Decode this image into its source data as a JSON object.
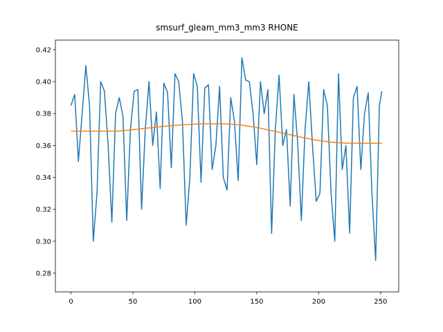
{
  "chart_data": {
    "type": "line",
    "title": "smsurf_gleam_mm3_mm3 RHONE",
    "x": [
      0,
      3,
      6,
      9,
      12,
      15,
      18,
      21,
      24,
      27,
      30,
      33,
      36,
      39,
      42,
      45,
      48,
      51,
      54,
      57,
      60,
      63,
      66,
      69,
      72,
      75,
      78,
      81,
      84,
      87,
      90,
      93,
      96,
      99,
      102,
      105,
      108,
      111,
      114,
      117,
      120,
      123,
      126,
      129,
      132,
      135,
      138,
      141,
      144,
      147,
      150,
      153,
      156,
      159,
      162,
      165,
      168,
      171,
      174,
      177,
      180,
      183,
      186,
      189,
      192,
      195,
      198,
      201,
      204,
      207,
      210,
      213,
      216,
      219,
      222,
      225,
      228,
      231,
      234,
      237,
      240,
      243,
      246,
      249,
      251
    ],
    "series": [
      {
        "color": "#1f77b4",
        "values": [
          0.385,
          0.392,
          0.35,
          0.38,
          0.41,
          0.385,
          0.3,
          0.33,
          0.4,
          0.394,
          0.36,
          0.312,
          0.38,
          0.39,
          0.378,
          0.313,
          0.37,
          0.394,
          0.395,
          0.32,
          0.37,
          0.4,
          0.36,
          0.381,
          0.333,
          0.399,
          0.393,
          0.346,
          0.405,
          0.4,
          0.375,
          0.31,
          0.34,
          0.405,
          0.397,
          0.337,
          0.396,
          0.398,
          0.345,
          0.36,
          0.397,
          0.34,
          0.332,
          0.39,
          0.375,
          0.338,
          0.415,
          0.401,
          0.4,
          0.38,
          0.348,
          0.4,
          0.38,
          0.395,
          0.305,
          0.37,
          0.404,
          0.36,
          0.37,
          0.322,
          0.392,
          0.362,
          0.313,
          0.37,
          0.4,
          0.36,
          0.325,
          0.33,
          0.395,
          0.385,
          0.33,
          0.3,
          0.405,
          0.345,
          0.36,
          0.305,
          0.39,
          0.397,
          0.345,
          0.38,
          0.393,
          0.33,
          0.288,
          0.385,
          0.394
        ]
      },
      {
        "color": "#ff7f0e",
        "values": [
          0.369,
          0.369,
          0.369,
          0.369,
          0.369,
          0.369,
          0.369,
          0.369,
          0.369,
          0.369,
          0.369,
          0.369,
          0.369,
          0.3691,
          0.3693,
          0.3695,
          0.3697,
          0.37,
          0.3702,
          0.3705,
          0.3708,
          0.371,
          0.3712,
          0.3715,
          0.3717,
          0.372,
          0.3722,
          0.3724,
          0.3726,
          0.3728,
          0.373,
          0.3731,
          0.3732,
          0.3733,
          0.3734,
          0.3735,
          0.3735,
          0.3736,
          0.3736,
          0.3736,
          0.3736,
          0.3736,
          0.3735,
          0.3734,
          0.3732,
          0.373,
          0.3727,
          0.3724,
          0.372,
          0.3716,
          0.3712,
          0.3708,
          0.3703,
          0.3698,
          0.3693,
          0.3688,
          0.3683,
          0.3678,
          0.3672,
          0.3667,
          0.3662,
          0.3657,
          0.3652,
          0.3647,
          0.3643,
          0.3638,
          0.3634,
          0.363,
          0.3627,
          0.3624,
          0.3621,
          0.3619,
          0.3617,
          0.3616,
          0.3615,
          0.3614,
          0.3614,
          0.3614,
          0.3614,
          0.3614,
          0.3614,
          0.3614,
          0.3614,
          0.3614,
          0.3614
        ]
      }
    ],
    "xlim": [
      -12.6,
      264.6
    ],
    "ylim": [
      0.2683,
      0.426
    ],
    "xticks": [
      0,
      50,
      100,
      150,
      200,
      250
    ],
    "yticks": [
      0.28,
      {
        "value": 0.3,
        "label": "0.30"
      },
      0.32,
      0.34,
      0.36,
      0.38,
      {
        "value": 0.4,
        "label": "0.40"
      },
      0.42
    ]
  }
}
